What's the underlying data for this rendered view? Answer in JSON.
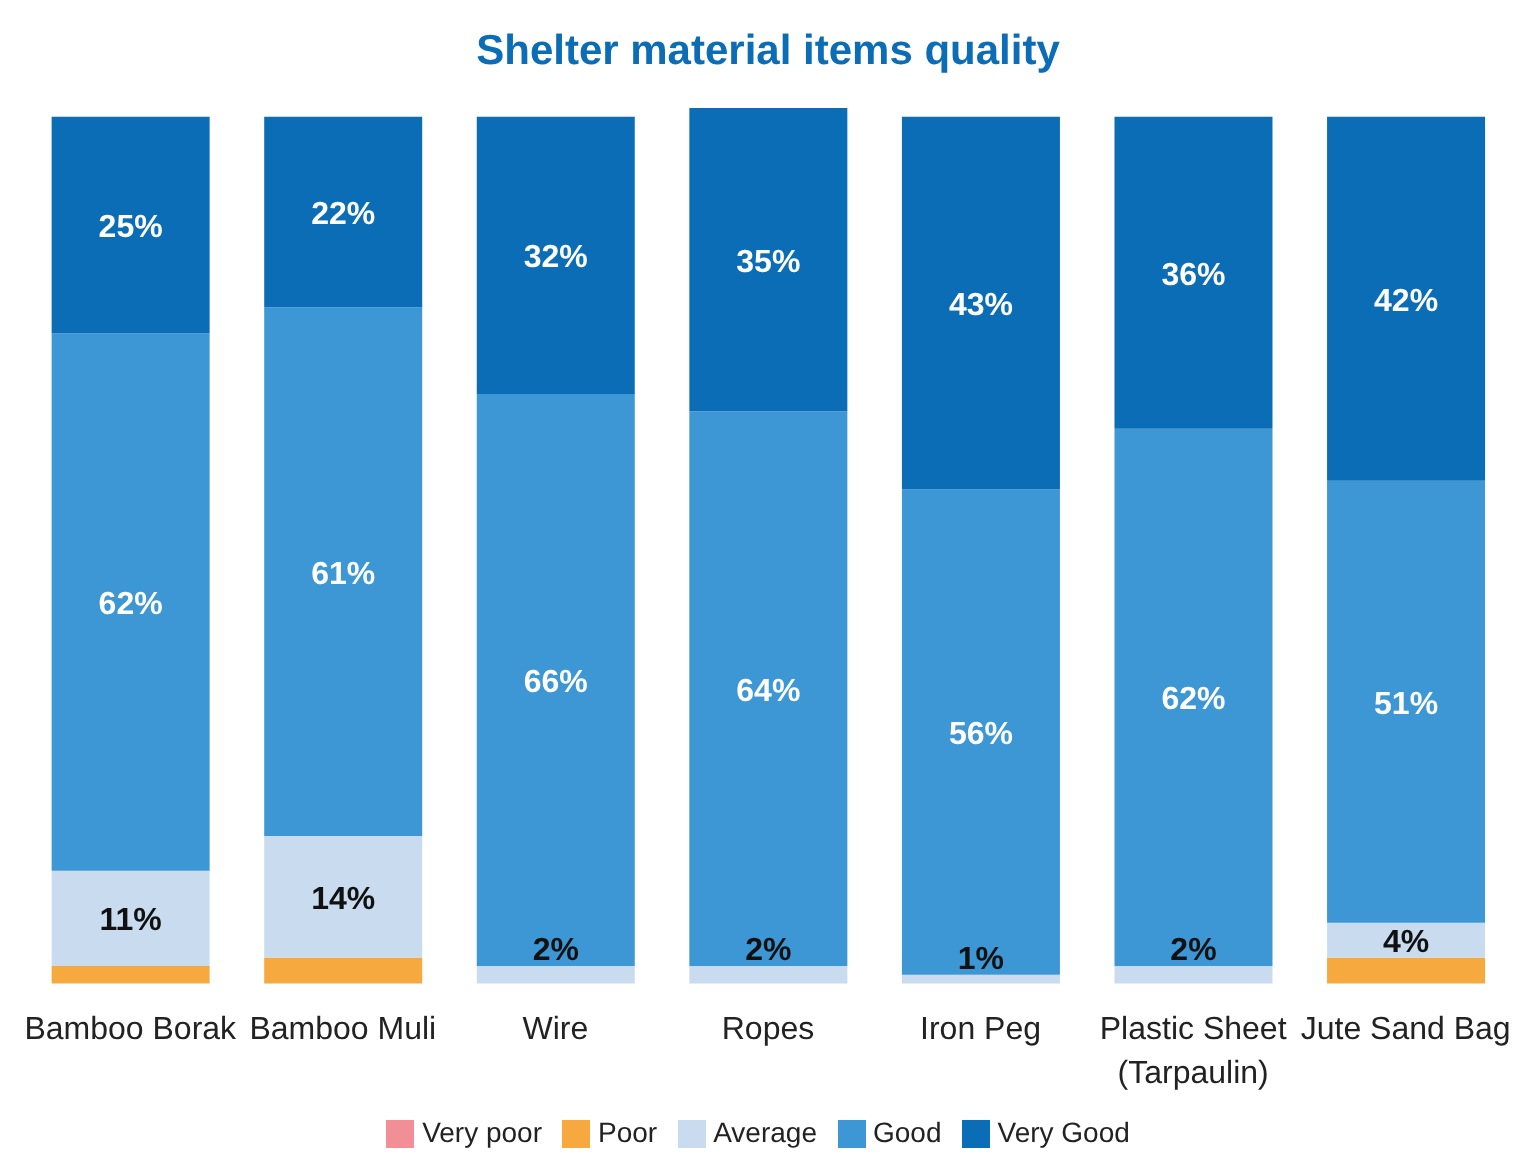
{
  "chart_data": {
    "type": "bar",
    "title": "Shelter material items quality",
    "stacked": true,
    "legend": "bottom",
    "grid": false,
    "categories": [
      "Bamboo Borak",
      "Bamboo Muli",
      "Wire",
      "Ropes",
      "Iron Peg",
      "Plastic Sheet (Tarpaulin)",
      "Jute Sand Bag"
    ],
    "series": [
      {
        "name": "Very poor",
        "color": "#f28e96",
        "values": [
          0,
          0,
          0,
          0,
          0,
          0,
          0
        ],
        "value_labels": [
          null,
          null,
          null,
          null,
          null,
          null,
          null
        ]
      },
      {
        "name": "Poor",
        "color": "#f5a93f",
        "values": [
          2,
          3,
          0,
          0,
          0,
          0,
          3
        ],
        "value_labels": [
          null,
          null,
          null,
          null,
          null,
          null,
          null
        ]
      },
      {
        "name": "Average",
        "color": "#c9dcef",
        "values": [
          11,
          14,
          2,
          2,
          1,
          2,
          4
        ],
        "value_labels": [
          "11%",
          "14%",
          "2%",
          "2%",
          "1%",
          "2%",
          "4%"
        ]
      },
      {
        "name": "Good",
        "color": "#3d97d4",
        "values": [
          62,
          61,
          66,
          64,
          56,
          62,
          51
        ],
        "value_labels": [
          "62%",
          "61%",
          "66%",
          "64%",
          "56%",
          "62%",
          "51%"
        ]
      },
      {
        "name": "Very Good",
        "color": "#0b6db5",
        "values": [
          25,
          22,
          32,
          35,
          43,
          36,
          42
        ],
        "value_labels": [
          "25%",
          "22%",
          "32%",
          "35%",
          "43%",
          "36%",
          "42%"
        ]
      }
    ]
  }
}
